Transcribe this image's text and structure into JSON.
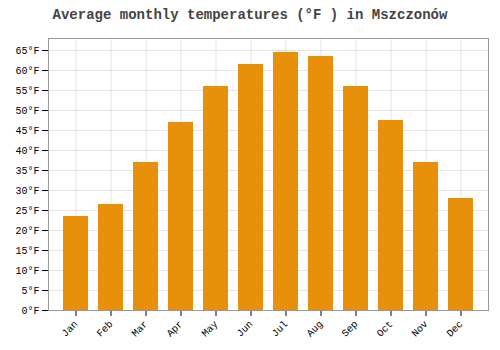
{
  "chart_data": {
    "type": "bar",
    "title": "Average monthly temperatures (°F ) in Mszczonów",
    "categories": [
      "Jan",
      "Feb",
      "Mar",
      "Apr",
      "May",
      "Jun",
      "Jul",
      "Aug",
      "Sep",
      "Oct",
      "Nov",
      "Dec"
    ],
    "values": [
      23.5,
      26.5,
      37.0,
      47.0,
      56.0,
      61.5,
      64.5,
      63.5,
      56.0,
      47.5,
      37.0,
      28.0
    ],
    "color": "#E8900A",
    "ylim": [
      0,
      68
    ],
    "yticks": [
      {
        "value": 0,
        "label": "0°F"
      },
      {
        "value": 5,
        "label": "5°F"
      },
      {
        "value": 10,
        "label": "10°F"
      },
      {
        "value": 15,
        "label": "15°F"
      },
      {
        "value": 20,
        "label": "20°F"
      },
      {
        "value": 25,
        "label": "25°F"
      },
      {
        "value": 30,
        "label": "30°F"
      },
      {
        "value": 35,
        "label": "35°F"
      },
      {
        "value": 40,
        "label": "40°F"
      },
      {
        "value": 45,
        "label": "45°F"
      },
      {
        "value": 50,
        "label": "50°F"
      },
      {
        "value": 55,
        "label": "55°F"
      },
      {
        "value": 60,
        "label": "60°F"
      },
      {
        "value": 65,
        "label": "65°F"
      }
    ],
    "grid": true
  }
}
